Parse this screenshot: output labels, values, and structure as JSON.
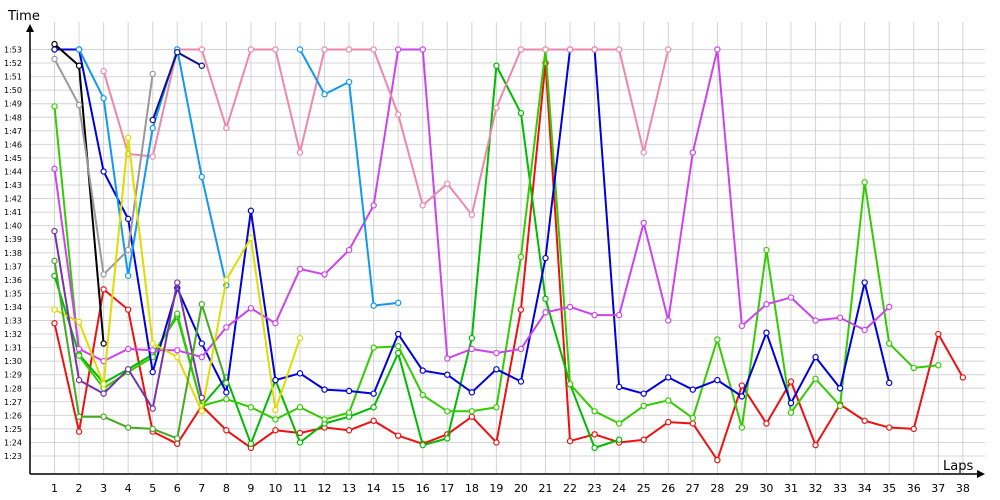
{
  "chart_data": {
    "type": "line",
    "xlabel": "Laps",
    "ylabel": "Time",
    "x": [
      1,
      2,
      3,
      4,
      5,
      6,
      7,
      8,
      9,
      10,
      11,
      12,
      13,
      14,
      15,
      16,
      17,
      18,
      19,
      20,
      21,
      22,
      23,
      24,
      25,
      26,
      27,
      28,
      29,
      30,
      31,
      32,
      33,
      34,
      35,
      36,
      37,
      38
    ],
    "x_ticks": [
      "1",
      "2",
      "3",
      "4",
      "5",
      "6",
      "7",
      "8",
      "9",
      "10",
      "11",
      "12",
      "13",
      "14",
      "15",
      "16",
      "17",
      "18",
      "19",
      "20",
      "21",
      "22",
      "23",
      "24",
      "25",
      "26",
      "27",
      "28",
      "29",
      "30",
      "31",
      "32",
      "33",
      "34",
      "35",
      "36",
      "37",
      "38"
    ],
    "y_ticks": [
      "1:23",
      "1:24",
      "1:25",
      "1:26",
      "1:27",
      "1:28",
      "1:29",
      "1:30",
      "1:31",
      "1:32",
      "1:33",
      "1:34",
      "1:35",
      "1:36",
      "1:37",
      "1:38",
      "1:39",
      "1:40",
      "1:41",
      "1:42",
      "1:43",
      "1:44",
      "1:45",
      "1:46",
      "1:47",
      "1:48",
      "1:49",
      "1:50",
      "1:51",
      "1:52",
      "1:53"
    ],
    "y_unit": "seconds",
    "ylim": [
      82,
      113
    ],
    "grid": true,
    "series": [
      {
        "color": "#ee1111",
        "values": [
          92.8,
          84.8,
          95.3,
          93.8,
          84.8,
          83.9,
          86.7,
          84.9,
          83.6,
          84.9,
          84.7,
          85.1,
          84.9,
          85.6,
          84.5,
          83.9,
          84.6,
          85.9,
          84.0,
          93.8,
          112.0,
          84.1,
          84.6,
          84.0,
          84.2,
          85.5,
          85.4,
          82.7,
          88.2,
          85.4,
          88.5,
          83.8,
          86.8,
          85.6,
          85.1,
          85.0,
          92.0,
          88.8
        ]
      },
      {
        "color": "#00bb00",
        "values": [
          96.3,
          90.5,
          88.4,
          89.4,
          90.5,
          93.3,
          86.7,
          88.8,
          83.9,
          88.6,
          84.0,
          85.4,
          85.9,
          86.6,
          90.6,
          83.8,
          84.3,
          91.7,
          111.8,
          108.3,
          94.6,
          88.3,
          83.6,
          84.2,
          null,
          null,
          null,
          null,
          null,
          null,
          null,
          null,
          null,
          null,
          null,
          null,
          null,
          null
        ]
      },
      {
        "color": "#33cc00",
        "values": [
          108.8,
          90.4,
          88.0,
          89.2,
          90.3,
          93.5,
          86.7,
          87.2,
          86.6,
          85.7,
          86.6,
          85.7,
          86.2,
          91.0,
          91.1,
          87.5,
          86.3,
          86.3,
          86.6,
          97.7,
          113.0,
          88.3,
          86.3,
          85.4,
          86.7,
          87.1,
          85.8,
          91.6,
          85.1,
          98.2,
          86.2,
          88.7,
          86.7,
          103.2,
          91.3,
          89.5,
          89.7,
          null
        ]
      },
      {
        "color": "#0000dd",
        "values": [
          113.0,
          113.0,
          104.0,
          100.5,
          89.2,
          95.4,
          91.3,
          87.7,
          101.1,
          88.6,
          89.1,
          87.9,
          87.8,
          87.6,
          92.0,
          89.3,
          89.0,
          87.7,
          89.4,
          88.5,
          97.6,
          113.0,
          113.0,
          88.1,
          87.6,
          88.8,
          87.9,
          88.6,
          87.4,
          92.1,
          86.9,
          90.3,
          88.0,
          95.8,
          88.4,
          null,
          null,
          null
        ]
      },
      {
        "color": "#cc44ee",
        "values": [
          104.2,
          90.9,
          90.0,
          90.9,
          90.8,
          90.8,
          90.3,
          92.5,
          93.9,
          92.8,
          96.8,
          96.4,
          98.2,
          101.5,
          113.0,
          113.0,
          90.2,
          90.9,
          90.6,
          90.9,
          93.6,
          94.0,
          93.4,
          93.4,
          100.2,
          93.0,
          105.4,
          113.0,
          92.6,
          94.2,
          94.7,
          93.0,
          93.2,
          92.3,
          94.0,
          null,
          null,
          null
        ]
      },
      {
        "color": "#ee88aa",
        "values": [
          null,
          null,
          111.4,
          105.3,
          105.1,
          113.0,
          113.0,
          107.2,
          113.0,
          113.0,
          105.4,
          113.0,
          113.0,
          113.0,
          108.2,
          101.5,
          103.1,
          100.8,
          108.7,
          113.0,
          113.0,
          113.0,
          113.0,
          113.0,
          105.4,
          113.0,
          null,
          null,
          null,
          null,
          null,
          null,
          null,
          null,
          null,
          null,
          null,
          null
        ]
      },
      {
        "color": "#1199ee",
        "values": [
          null,
          113.0,
          109.4,
          96.3,
          107.2,
          113.0,
          103.6,
          95.6,
          null,
          null,
          113.0,
          109.7,
          110.6,
          94.1,
          94.3,
          null,
          null,
          null,
          null,
          null,
          null,
          null,
          null,
          null,
          null,
          null,
          null,
          null,
          null,
          null,
          null,
          null,
          null,
          null,
          null,
          null,
          null,
          null
        ]
      },
      {
        "color": "#000000",
        "values": [
          113.4,
          111.8,
          91.3,
          null,
          null,
          null,
          null,
          null,
          null,
          null,
          null,
          null,
          null,
          null,
          null,
          null,
          null,
          null,
          null,
          null,
          null,
          null,
          null,
          null,
          null,
          null,
          null,
          null,
          null,
          null,
          null,
          null,
          null,
          null,
          null,
          null,
          null,
          null
        ]
      },
      {
        "color": "#999999",
        "values": [
          112.3,
          108.9,
          96.4,
          98.2,
          111.2,
          null,
          null,
          null,
          null,
          null,
          null,
          null,
          null,
          null,
          null,
          null,
          null,
          null,
          null,
          null,
          null,
          null,
          null,
          null,
          null,
          null,
          null,
          null,
          null,
          null,
          null,
          null,
          null,
          null,
          null,
          null,
          null,
          null
        ]
      },
      {
        "color": "#11118a",
        "values": [
          null,
          null,
          null,
          null,
          107.8,
          112.8,
          111.8,
          null,
          null,
          null,
          null,
          null,
          null,
          null,
          null,
          null,
          null,
          null,
          null,
          null,
          null,
          null,
          null,
          null,
          null,
          null,
          null,
          null,
          null,
          null,
          null,
          null,
          null,
          null,
          null,
          null,
          null,
          null
        ]
      },
      {
        "color": "#dddd00",
        "values": [
          93.8,
          92.9,
          88.3,
          106.5,
          91.3,
          90.3,
          86.3,
          96.0,
          99.1,
          86.4,
          91.7,
          null,
          null,
          null,
          null,
          null,
          null,
          null,
          null,
          null,
          null,
          null,
          null,
          null,
          null,
          null,
          null,
          null,
          null,
          null,
          null,
          null,
          null,
          null,
          null,
          null,
          null,
          null
        ]
      },
      {
        "color": "#7733aa",
        "values": [
          99.6,
          88.6,
          87.6,
          89.4,
          86.5,
          95.8,
          87.3,
          null,
          null,
          null,
          null,
          null,
          null,
          null,
          null,
          null,
          null,
          null,
          null,
          null,
          null,
          null,
          null,
          null,
          null,
          null,
          null,
          null,
          null,
          null,
          null,
          null,
          null,
          null,
          null,
          null,
          null,
          null
        ]
      },
      {
        "color": "#44aa22",
        "values": [
          97.4,
          85.9,
          85.9,
          85.1,
          85.0,
          84.3,
          94.2,
          88.4,
          null,
          null,
          null,
          null,
          null,
          null,
          null,
          null,
          null,
          null,
          null,
          null,
          null,
          null,
          null,
          null,
          null,
          null,
          null,
          null,
          null,
          null,
          null,
          null,
          null,
          null,
          null,
          null,
          null,
          null
        ]
      }
    ]
  }
}
